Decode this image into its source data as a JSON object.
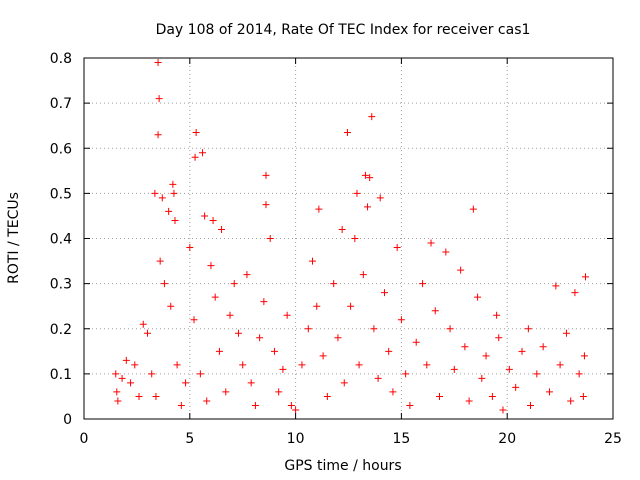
{
  "chart_data": {
    "type": "scatter",
    "title": "Day 108 of 2014, Rate Of TEC Index for receiver cas1",
    "xlabel": "GPS time / hours",
    "ylabel": "ROTI / TECUs",
    "xlim": [
      0,
      25
    ],
    "ylim": [
      0,
      0.8
    ],
    "xticks": [
      0,
      5,
      10,
      15,
      20,
      25
    ],
    "yticks": [
      0,
      0.1,
      0.2,
      0.3,
      0.4,
      0.5,
      0.6,
      0.7,
      0.8
    ],
    "xtick_labels": [
      "0",
      "5",
      "10",
      "15",
      "20",
      "25"
    ],
    "ytick_labels": [
      "0",
      "0.1",
      "0.2",
      "0.3",
      "0.4",
      "0.5",
      "0.6",
      "0.7",
      "0.8"
    ],
    "grid": true,
    "marker": "+",
    "series_color": "#ff0000",
    "series": [
      {
        "name": "cas1",
        "points": [
          [
            3.5,
            0.79
          ],
          [
            3.55,
            0.71
          ],
          [
            3.5,
            0.63
          ],
          [
            5.3,
            0.635
          ],
          [
            5.25,
            0.58
          ],
          [
            5.6,
            0.59
          ],
          [
            12.45,
            0.635
          ],
          [
            13.6,
            0.67
          ],
          [
            8.6,
            0.54
          ],
          [
            18.4,
            0.465
          ],
          [
            13.3,
            0.54
          ],
          [
            13.5,
            0.535
          ],
          [
            3.35,
            0.5
          ],
          [
            4.2,
            0.52
          ],
          [
            4.25,
            0.5
          ],
          [
            3.7,
            0.49
          ],
          [
            12.9,
            0.5
          ],
          [
            14.0,
            0.49
          ],
          [
            8.6,
            0.475
          ],
          [
            4.0,
            0.46
          ],
          [
            4.3,
            0.44
          ],
          [
            5.7,
            0.45
          ],
          [
            6.1,
            0.44
          ],
          [
            6.5,
            0.42
          ],
          [
            11.1,
            0.465
          ],
          [
            12.2,
            0.42
          ],
          [
            13.4,
            0.47
          ],
          [
            14.8,
            0.38
          ],
          [
            16.4,
            0.39
          ],
          [
            17.1,
            0.37
          ],
          [
            23.7,
            0.315
          ],
          [
            22.3,
            0.295
          ],
          [
            23.2,
            0.28
          ],
          [
            19.5,
            0.23
          ],
          [
            21.0,
            0.2
          ],
          [
            1.5,
            0.1
          ],
          [
            1.55,
            0.06
          ],
          [
            1.6,
            0.04
          ],
          [
            1.8,
            0.09
          ],
          [
            2.0,
            0.13
          ],
          [
            2.2,
            0.08
          ],
          [
            2.4,
            0.12
          ],
          [
            2.6,
            0.05
          ],
          [
            2.8,
            0.21
          ],
          [
            3.0,
            0.19
          ],
          [
            3.2,
            0.1
          ],
          [
            3.4,
            0.05
          ],
          [
            3.6,
            0.35
          ],
          [
            3.8,
            0.3
          ],
          [
            4.1,
            0.25
          ],
          [
            4.4,
            0.12
          ],
          [
            4.6,
            0.03
          ],
          [
            4.8,
            0.08
          ],
          [
            5.0,
            0.38
          ],
          [
            5.2,
            0.22
          ],
          [
            5.5,
            0.1
          ],
          [
            5.8,
            0.04
          ],
          [
            6.0,
            0.34
          ],
          [
            6.2,
            0.27
          ],
          [
            6.4,
            0.15
          ],
          [
            6.7,
            0.06
          ],
          [
            6.9,
            0.23
          ],
          [
            7.1,
            0.3
          ],
          [
            7.3,
            0.19
          ],
          [
            7.5,
            0.12
          ],
          [
            7.7,
            0.32
          ],
          [
            7.9,
            0.08
          ],
          [
            8.1,
            0.03
          ],
          [
            8.3,
            0.18
          ],
          [
            8.5,
            0.26
          ],
          [
            8.8,
            0.4
          ],
          [
            9.0,
            0.15
          ],
          [
            9.2,
            0.06
          ],
          [
            9.4,
            0.11
          ],
          [
            9.6,
            0.23
          ],
          [
            9.8,
            0.03
          ],
          [
            10.0,
            0.02
          ],
          [
            10.3,
            0.12
          ],
          [
            10.6,
            0.2
          ],
          [
            10.8,
            0.35
          ],
          [
            11.0,
            0.25
          ],
          [
            11.3,
            0.14
          ],
          [
            11.5,
            0.05
          ],
          [
            11.8,
            0.3
          ],
          [
            12.0,
            0.18
          ],
          [
            12.3,
            0.08
          ],
          [
            12.6,
            0.25
          ],
          [
            12.8,
            0.4
          ],
          [
            13.0,
            0.12
          ],
          [
            13.2,
            0.32
          ],
          [
            13.7,
            0.2
          ],
          [
            13.9,
            0.09
          ],
          [
            14.2,
            0.28
          ],
          [
            14.4,
            0.15
          ],
          [
            14.6,
            0.06
          ],
          [
            15.0,
            0.22
          ],
          [
            15.2,
            0.1
          ],
          [
            15.4,
            0.03
          ],
          [
            15.7,
            0.17
          ],
          [
            16.0,
            0.3
          ],
          [
            16.2,
            0.12
          ],
          [
            16.6,
            0.24
          ],
          [
            16.8,
            0.05
          ],
          [
            17.3,
            0.2
          ],
          [
            17.5,
            0.11
          ],
          [
            17.8,
            0.33
          ],
          [
            18.0,
            0.16
          ],
          [
            18.2,
            0.04
          ],
          [
            18.6,
            0.27
          ],
          [
            18.8,
            0.09
          ],
          [
            19.0,
            0.14
          ],
          [
            19.3,
            0.05
          ],
          [
            19.6,
            0.18
          ],
          [
            19.8,
            0.02
          ],
          [
            20.1,
            0.11
          ],
          [
            20.4,
            0.07
          ],
          [
            20.7,
            0.15
          ],
          [
            21.1,
            0.03
          ],
          [
            21.4,
            0.1
          ],
          [
            21.7,
            0.16
          ],
          [
            22.0,
            0.06
          ],
          [
            22.5,
            0.12
          ],
          [
            22.8,
            0.19
          ],
          [
            23.0,
            0.04
          ],
          [
            23.4,
            0.1
          ],
          [
            23.6,
            0.05
          ],
          [
            23.65,
            0.14
          ]
        ]
      }
    ]
  }
}
